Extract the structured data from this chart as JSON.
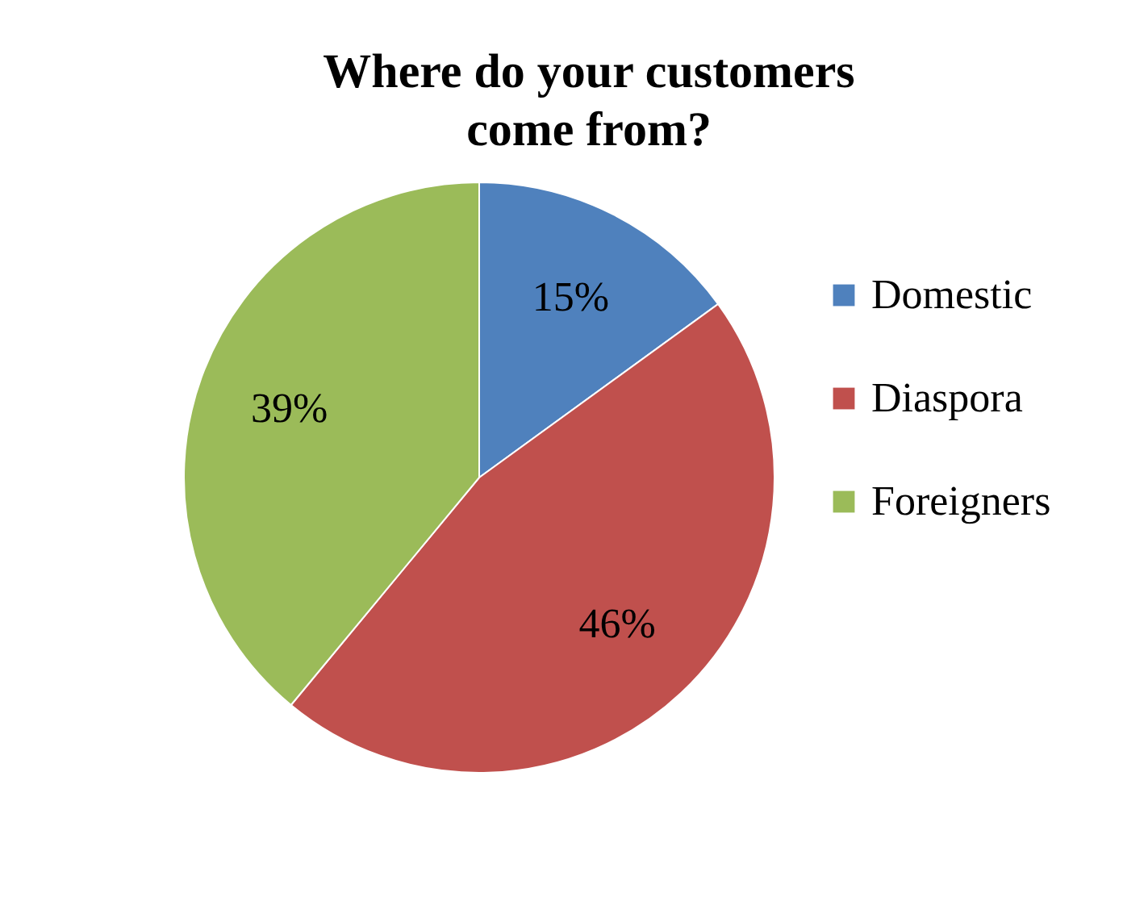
{
  "chart_data": {
    "type": "pie",
    "title": "Where do your customers come from?",
    "categories": [
      "Domestic",
      "Diaspora",
      "Foreigners"
    ],
    "values": [
      15,
      46,
      39
    ],
    "colors": [
      "#4f81bd",
      "#c0504d",
      "#9bbb59"
    ],
    "value_labels": [
      "15%",
      "46%",
      "39%"
    ],
    "legend": "right"
  }
}
